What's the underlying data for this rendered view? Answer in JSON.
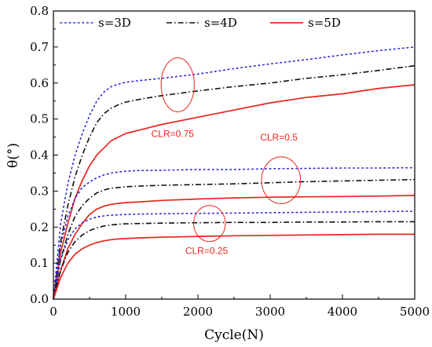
{
  "chart_data": {
    "type": "line",
    "xlabel": "Cycle(N)",
    "ylabel": "θ(°)",
    "xlim": [
      0,
      5000
    ],
    "ylim": [
      0,
      0.8
    ],
    "xticks": [
      "0",
      "1000",
      "2000",
      "3000",
      "4000",
      "5000"
    ],
    "yticks": [
      "0.0",
      "0.1",
      "0.2",
      "0.3",
      "0.4",
      "0.5",
      "0.6",
      "0.7",
      "0.8"
    ],
    "grid": false,
    "legend_position": "top-left",
    "legend": [
      {
        "label": "s=3D",
        "color": "#2b2bd6",
        "style": "dotted"
      },
      {
        "label": "s=4D",
        "color": "#111111",
        "style": "dashdot"
      },
      {
        "label": "s=5D",
        "color": "#e8261f",
        "style": "solid"
      }
    ],
    "x": [
      0,
      100,
      200,
      300,
      400,
      500,
      600,
      700,
      800,
      900,
      1000,
      1200,
      1500,
      2000,
      2500,
      3000,
      3500,
      4000,
      4500,
      5000
    ],
    "series": [
      {
        "name": "s=3D",
        "group": "CLR=0.75",
        "style": "dotted",
        "color": "#2b2bd6",
        "values": [
          0.0,
          0.21,
          0.32,
          0.4,
          0.46,
          0.51,
          0.55,
          0.575,
          0.59,
          0.597,
          0.602,
          0.607,
          0.613,
          0.625,
          0.64,
          0.653,
          0.665,
          0.678,
          0.69,
          0.7
        ]
      },
      {
        "name": "s=4D",
        "group": "CLR=0.75",
        "style": "dashdot",
        "color": "#111111",
        "values": [
          0.0,
          0.16,
          0.26,
          0.34,
          0.4,
          0.45,
          0.49,
          0.515,
          0.53,
          0.54,
          0.547,
          0.555,
          0.565,
          0.578,
          0.59,
          0.6,
          0.613,
          0.623,
          0.635,
          0.648
        ]
      },
      {
        "name": "s=5D",
        "group": "CLR=0.75",
        "style": "solid",
        "color": "#e8261f",
        "values": [
          0.0,
          0.13,
          0.21,
          0.28,
          0.33,
          0.37,
          0.4,
          0.42,
          0.44,
          0.45,
          0.46,
          0.47,
          0.485,
          0.505,
          0.525,
          0.545,
          0.56,
          0.57,
          0.585,
          0.595
        ]
      },
      {
        "name": "s=3D",
        "group": "CLR=0.5",
        "style": "dotted",
        "color": "#2b2bd6",
        "values": [
          0.0,
          0.15,
          0.23,
          0.28,
          0.31,
          0.325,
          0.337,
          0.345,
          0.35,
          0.353,
          0.355,
          0.357,
          0.358,
          0.36,
          0.36,
          0.362,
          0.363,
          0.364,
          0.364,
          0.365
        ]
      },
      {
        "name": "s=4D",
        "group": "CLR=0.5",
        "style": "dashdot",
        "color": "#111111",
        "values": [
          0.0,
          0.11,
          0.18,
          0.23,
          0.26,
          0.28,
          0.295,
          0.303,
          0.308,
          0.31,
          0.312,
          0.314,
          0.316,
          0.318,
          0.32,
          0.323,
          0.326,
          0.328,
          0.33,
          0.332
        ]
      },
      {
        "name": "s=5D",
        "group": "CLR=0.5",
        "style": "solid",
        "color": "#e8261f",
        "values": [
          0.0,
          0.08,
          0.14,
          0.18,
          0.21,
          0.235,
          0.25,
          0.258,
          0.263,
          0.266,
          0.268,
          0.27,
          0.274,
          0.278,
          0.281,
          0.283,
          0.284,
          0.285,
          0.286,
          0.288
        ]
      },
      {
        "name": "s=3D",
        "group": "CLR=0.25",
        "style": "dotted",
        "color": "#2b2bd6",
        "values": [
          0.0,
          0.11,
          0.165,
          0.195,
          0.212,
          0.222,
          0.228,
          0.231,
          0.233,
          0.234,
          0.235,
          0.236,
          0.237,
          0.238,
          0.239,
          0.24,
          0.241,
          0.242,
          0.243,
          0.244
        ]
      },
      {
        "name": "s=4D",
        "group": "CLR=0.25",
        "style": "dashdot",
        "color": "#111111",
        "values": [
          0.0,
          0.08,
          0.13,
          0.16,
          0.178,
          0.19,
          0.198,
          0.203,
          0.206,
          0.208,
          0.209,
          0.21,
          0.211,
          0.212,
          0.213,
          0.213,
          0.214,
          0.214,
          0.215,
          0.215
        ]
      },
      {
        "name": "s=5D",
        "group": "CLR=0.25",
        "style": "solid",
        "color": "#e8261f",
        "values": [
          0.0,
          0.06,
          0.1,
          0.125,
          0.14,
          0.15,
          0.157,
          0.162,
          0.165,
          0.167,
          0.168,
          0.17,
          0.172,
          0.174,
          0.176,
          0.177,
          0.178,
          0.179,
          0.18,
          0.18
        ]
      }
    ],
    "annotations": [
      {
        "text": "CLR=0.75",
        "text_x": 1650,
        "text_y": 0.45,
        "ellipse_cx": 1720,
        "ellipse_cy": 0.595,
        "ellipse_rx": 230,
        "ellipse_ry": 0.075
      },
      {
        "text": "CLR=0.5",
        "text_x": 3120,
        "text_y": 0.44,
        "ellipse_cx": 3150,
        "ellipse_cy": 0.33,
        "ellipse_rx": 270,
        "ellipse_ry": 0.065
      },
      {
        "text": "CLR=0.25",
        "text_x": 2120,
        "text_y": 0.125,
        "ellipse_cx": 2160,
        "ellipse_cy": 0.21,
        "ellipse_rx": 220,
        "ellipse_ry": 0.05
      }
    ],
    "annotation_color": "#e8261f"
  }
}
